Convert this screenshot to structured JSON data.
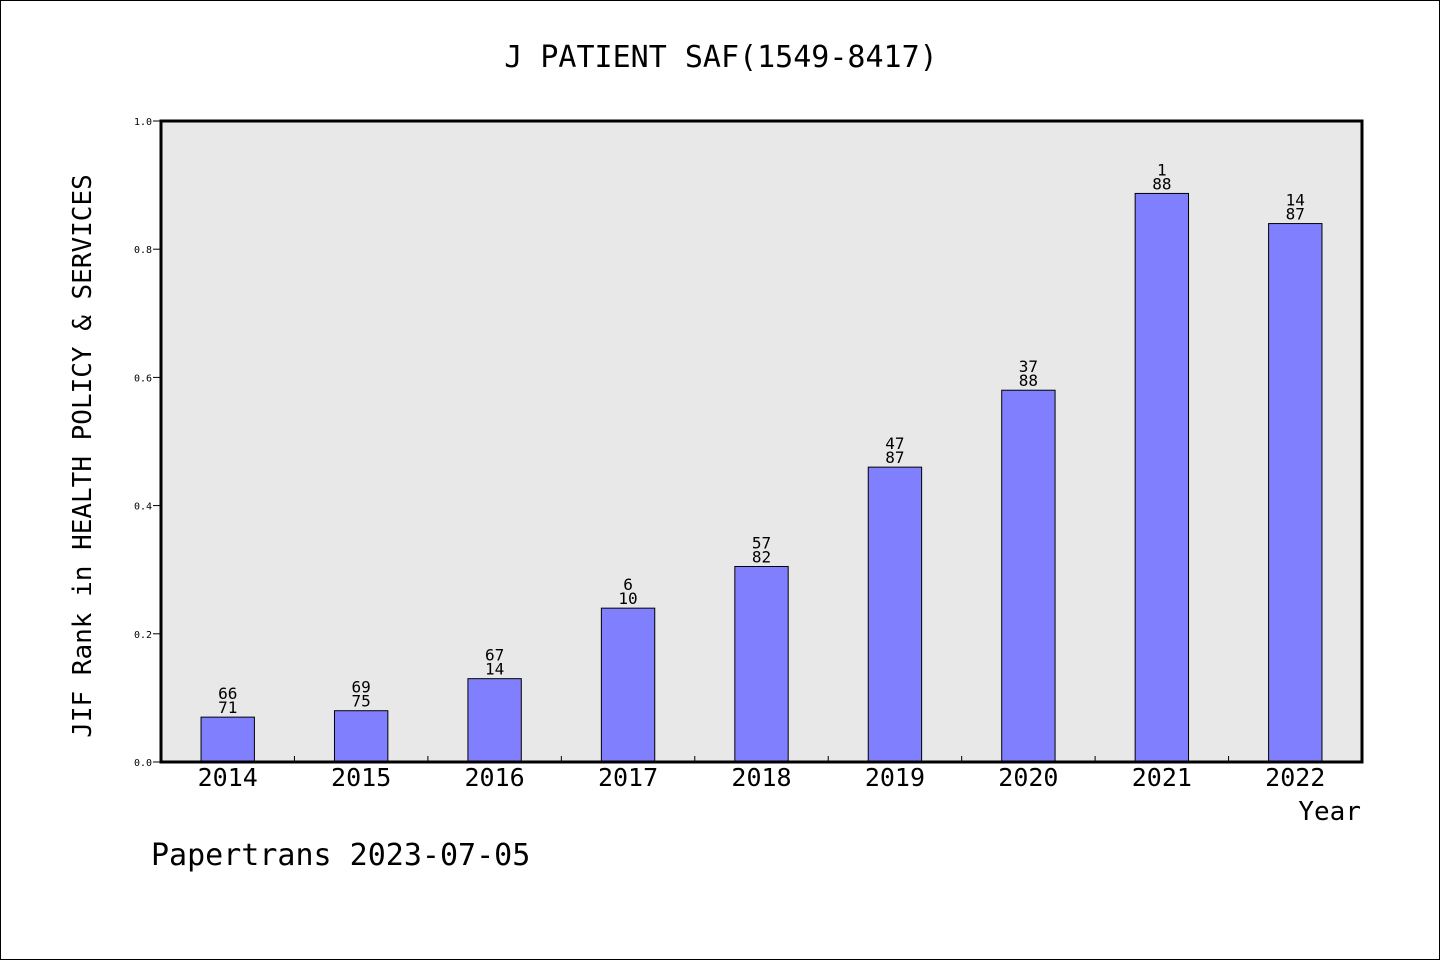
{
  "chart_data": {
    "type": "bar",
    "title": "J PATIENT SAF(1549-8417)",
    "xlabel": "Year",
    "ylabel": "JIF Rank in HEALTH POLICY & SERVICES",
    "categories": [
      "2014",
      "2015",
      "2016",
      "2017",
      "2018",
      "2019",
      "2020",
      "2021",
      "2022"
    ],
    "values": [
      0.07,
      0.08,
      0.13,
      0.24,
      0.305,
      0.46,
      0.58,
      0.887,
      0.84
    ],
    "bar_labels": [
      {
        "top": "66",
        "bottom": "71"
      },
      {
        "top": "69",
        "bottom": "75"
      },
      {
        "top": "67",
        "bottom": "14"
      },
      {
        "top": "6",
        "bottom": "10"
      },
      {
        "top": "57",
        "bottom": "82"
      },
      {
        "top": "47",
        "bottom": "87"
      },
      {
        "top": "37",
        "bottom": "88"
      },
      {
        "top": "1",
        "bottom": "88"
      },
      {
        "top": "14",
        "bottom": "87"
      }
    ],
    "ylim": [
      0,
      1.0
    ],
    "yticks": [
      "0.0",
      "0.2",
      "0.4",
      "0.6",
      "0.8",
      "1.0"
    ],
    "grid": false,
    "colors": {
      "bar": "#8080ff",
      "plot_background": "#e8e8e8"
    }
  },
  "footer": "Papertrans 2023-07-05"
}
